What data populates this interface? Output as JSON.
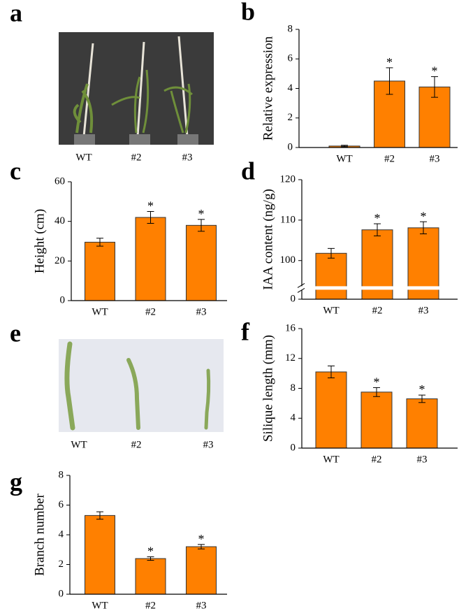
{
  "photos": [
    {
      "letter": "a",
      "captions": [
        "WT",
        "#2",
        "#3"
      ]
    },
    {
      "letter": "e",
      "captions": [
        "WT",
        "#2",
        "#3"
      ]
    }
  ],
  "chart_data": [
    {
      "type": "bar",
      "letter": "b",
      "ylabel": "Relative expression",
      "categories": [
        "WT",
        "#2",
        "#3"
      ],
      "values": [
        0.1,
        4.5,
        4.1
      ],
      "errors": [
        0.05,
        0.9,
        0.7
      ],
      "significance": [
        null,
        "*",
        "*"
      ],
      "color": "#ff8000",
      "ylim": [
        0,
        8
      ],
      "yticks": [
        0,
        2,
        4,
        6,
        8
      ]
    },
    {
      "type": "bar",
      "letter": "c",
      "ylabel": "Height (cm)",
      "categories": [
        "WT",
        "#2",
        "#3"
      ],
      "values": [
        29.5,
        42,
        38
      ],
      "errors": [
        2,
        3,
        3
      ],
      "significance": [
        null,
        "*",
        "*"
      ],
      "color": "#ff8000",
      "ylim": [
        0,
        60
      ],
      "yticks": [
        0,
        20,
        40,
        60
      ]
    },
    {
      "type": "bar",
      "letter": "d",
      "ylabel": "IAA content (ng/g)",
      "categories": [
        "WT",
        "#2",
        "#3"
      ],
      "values": [
        101.8,
        107.6,
        108.1
      ],
      "errors": [
        1.2,
        1.5,
        1.5
      ],
      "significance": [
        null,
        "*",
        "*"
      ],
      "color": "#ff8000",
      "ylim": [
        0,
        120
      ],
      "yticks": [
        0,
        100,
        110,
        120
      ],
      "axis_break": [
        2,
        94
      ]
    },
    {
      "type": "bar",
      "letter": "f",
      "ylabel": "Silique length (mm)",
      "categories": [
        "WT",
        "#2",
        "#3"
      ],
      "values": [
        10.2,
        7.5,
        6.6
      ],
      "errors": [
        0.8,
        0.6,
        0.5
      ],
      "significance": [
        null,
        "*",
        "*"
      ],
      "color": "#ff8000",
      "ylim": [
        0,
        16
      ],
      "yticks": [
        0,
        4,
        8,
        12,
        16
      ]
    },
    {
      "type": "bar",
      "letter": "g",
      "ylabel": "Branch number",
      "categories": [
        "WT",
        "#2",
        "#3"
      ],
      "values": [
        5.3,
        2.4,
        3.2
      ],
      "errors": [
        0.25,
        0.12,
        0.15
      ],
      "significance": [
        null,
        "*",
        "*"
      ],
      "color": "#ff8000",
      "ylim": [
        0,
        8
      ],
      "yticks": [
        0,
        2,
        4,
        6,
        8
      ]
    }
  ]
}
